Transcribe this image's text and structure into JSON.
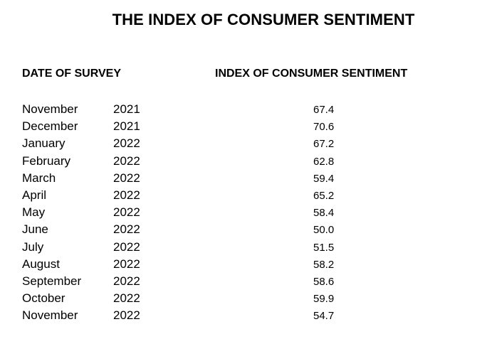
{
  "title": "THE INDEX OF CONSUMER SENTIMENT",
  "headers": {
    "date": "DATE OF SURVEY",
    "index": "INDEX OF CONSUMER SENTIMENT"
  },
  "rows": [
    {
      "month": "November",
      "year": "2021",
      "value": "67.4"
    },
    {
      "month": "December",
      "year": "2021",
      "value": "70.6"
    },
    {
      "month": "January",
      "year": "2022",
      "value": "67.2"
    },
    {
      "month": "February",
      "year": "2022",
      "value": "62.8"
    },
    {
      "month": "March",
      "year": "2022",
      "value": "59.4"
    },
    {
      "month": "April",
      "year": "2022",
      "value": "65.2"
    },
    {
      "month": "May",
      "year": "2022",
      "value": "58.4"
    },
    {
      "month": "June",
      "year": "2022",
      "value": "50.0"
    },
    {
      "month": "July",
      "year": "2022",
      "value": "51.5"
    },
    {
      "month": "August",
      "year": "2022",
      "value": "58.2"
    },
    {
      "month": "September",
      "year": "2022",
      "value": "58.6"
    },
    {
      "month": "October",
      "year": "2022",
      "value": "59.9"
    },
    {
      "month": "November",
      "year": "2022",
      "value": "54.7"
    }
  ]
}
